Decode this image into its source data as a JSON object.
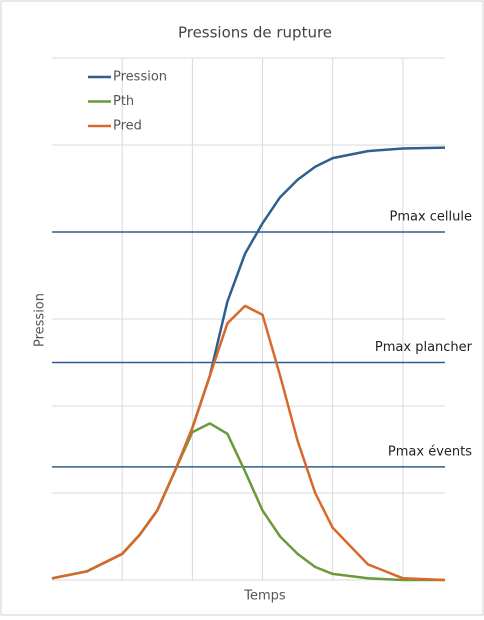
{
  "chart_data": {
    "type": "line",
    "title": "Pressions de rupture",
    "xlabel": "Temps",
    "ylabel": "Pression",
    "x": [
      0,
      0.5,
      1,
      1.25,
      1.5,
      1.75,
      2,
      2.25,
      2.5,
      2.75,
      3,
      3.25,
      3.5,
      3.75,
      4,
      4.5,
      5,
      5.6
    ],
    "series": [
      {
        "name": "Pression",
        "color": "#2f5f8f",
        "values": [
          0.02,
          0.1,
          0.3,
          0.52,
          0.8,
          1.25,
          1.75,
          2.35,
          3.2,
          3.75,
          4.1,
          4.4,
          4.6,
          4.75,
          4.85,
          4.93,
          4.96,
          4.97
        ]
      },
      {
        "name": "Pth",
        "color": "#6a9a3a",
        "values": [
          0.02,
          0.1,
          0.3,
          0.52,
          0.8,
          1.25,
          1.7,
          1.8,
          1.68,
          1.25,
          0.8,
          0.5,
          0.3,
          0.15,
          0.07,
          0.02,
          0,
          0
        ]
      },
      {
        "name": "Pred",
        "color": "#d9692a",
        "values": [
          0.02,
          0.1,
          0.3,
          0.52,
          0.8,
          1.25,
          1.75,
          2.35,
          2.95,
          3.15,
          3.05,
          2.35,
          1.6,
          1.0,
          0.6,
          0.18,
          0.02,
          0
        ]
      }
    ],
    "reference_lines": [
      {
        "label": "Pmax cellule",
        "value": 4.0,
        "color": "#2f5f8f"
      },
      {
        "label": "Pmax plancher",
        "value": 2.5,
        "color": "#2f5f8f"
      },
      {
        "label": "Pmax évents",
        "value": 1.3,
        "color": "#2f5f8f"
      }
    ],
    "xlim": [
      0,
      5.6
    ],
    "ylim": [
      0,
      6
    ],
    "xticks": [
      1,
      2,
      3,
      4,
      5
    ],
    "yticks": [
      1,
      2,
      3,
      4,
      5,
      6
    ],
    "tick_labels": false,
    "grid": true,
    "legend": "upper left"
  }
}
